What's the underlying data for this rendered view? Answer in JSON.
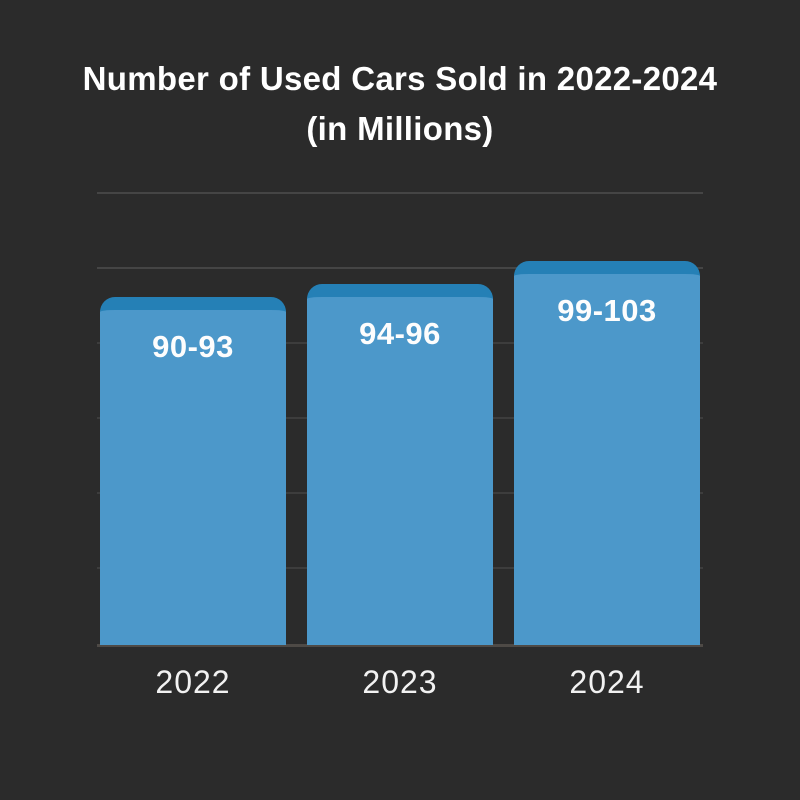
{
  "title": {
    "line1": "Number of Used Cars Sold in 2022-2024",
    "line2": "(in Millions)"
  },
  "chart_data": {
    "type": "bar",
    "title": "Number of Used Cars Sold in 2022-2024 (in Millions)",
    "categories": [
      "2022",
      "2023",
      "2024"
    ],
    "values": [
      [
        90,
        93
      ],
      [
        94,
        96
      ],
      [
        99,
        103
      ]
    ],
    "value_midpoints": [
      91.5,
      95,
      101
    ],
    "value_labels": [
      "90-93",
      "94-96",
      "99-103"
    ],
    "xlabel": "",
    "ylabel": "",
    "ylim": [
      0,
      120
    ],
    "grid": true,
    "legend": false,
    "colors": {
      "background": "#2b2b2b",
      "bar_body": "#4c98ca",
      "bar_cap": "#2580b6",
      "gridline": "#454545",
      "text": "#ffffff"
    }
  }
}
